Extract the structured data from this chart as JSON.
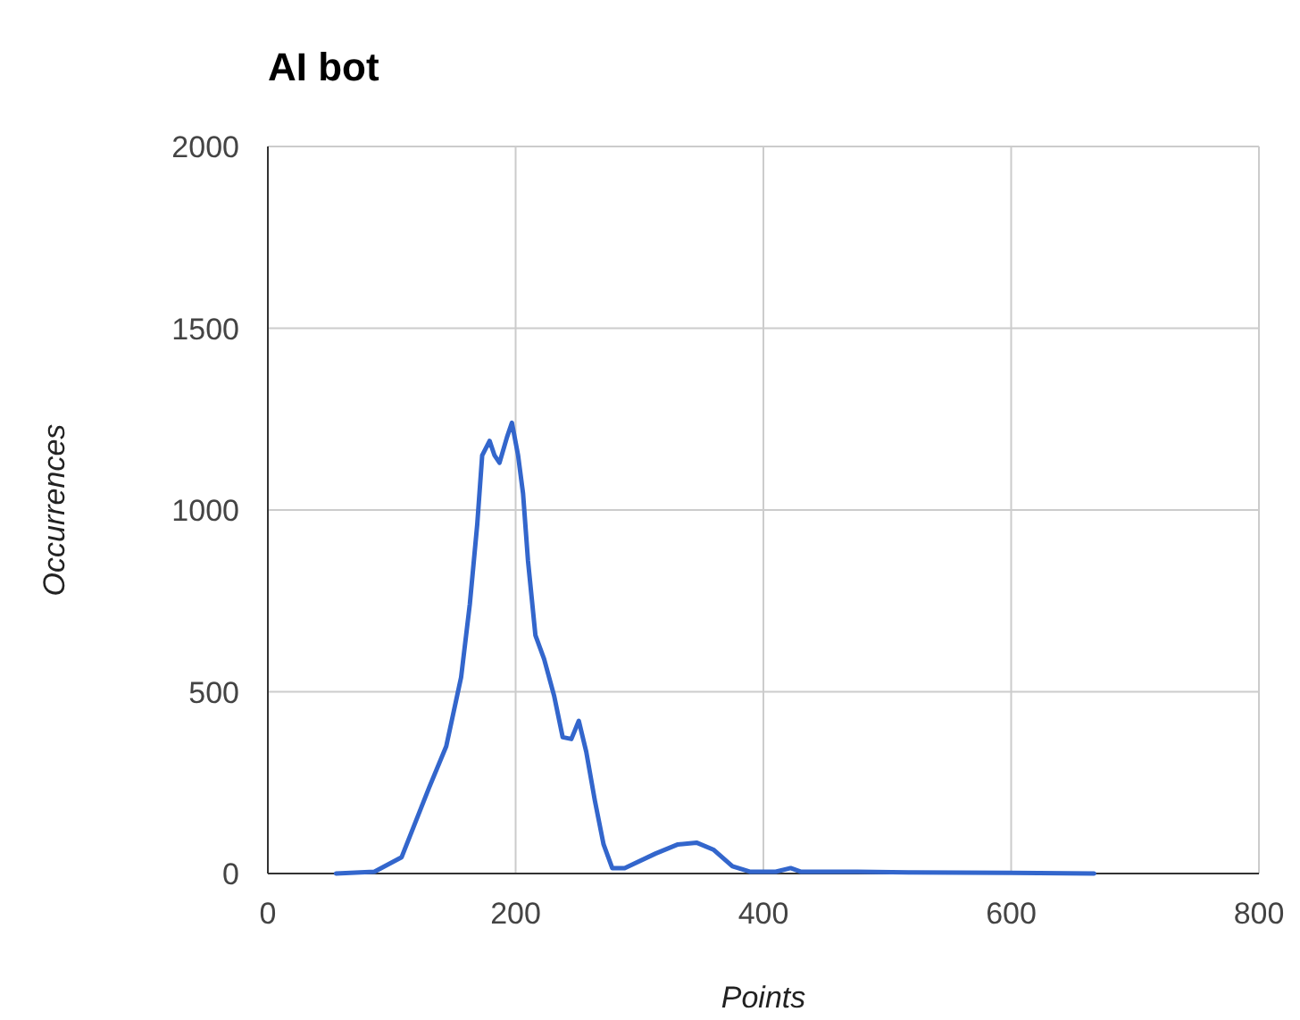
{
  "chart_data": {
    "type": "line",
    "title": "AI bot",
    "xlabel": "Points",
    "ylabel": "Occurrences",
    "xlim": [
      0,
      800
    ],
    "xticks": [
      0,
      200,
      400,
      600,
      800
    ],
    "ylim": [
      0,
      2000
    ],
    "yticks": [
      0,
      500,
      1000,
      1500,
      2000
    ],
    "grid": true,
    "marker": "none",
    "line_style": "solid",
    "series": [
      {
        "color": "#3366cc",
        "x": [
          55,
          86,
          108,
          130,
          144,
          156,
          163,
          169,
          173,
          179,
          183,
          187,
          193,
          197,
          202,
          206,
          210,
          216,
          223,
          231,
          238,
          245,
          251,
          257,
          264,
          271,
          278,
          288,
          313,
          331,
          346,
          360,
          375,
          389,
          410,
          422,
          430,
          476,
          520,
          600,
          667
        ],
        "values": [
          0,
          5,
          45,
          235,
          350,
          540,
          740,
          960,
          1150,
          1190,
          1150,
          1130,
          1200,
          1240,
          1150,
          1045,
          860,
          655,
          590,
          490,
          375,
          370,
          420,
          335,
          200,
          80,
          15,
          15,
          55,
          80,
          85,
          65,
          20,
          5,
          5,
          15,
          5,
          5,
          3,
          2,
          0
        ]
      }
    ]
  }
}
